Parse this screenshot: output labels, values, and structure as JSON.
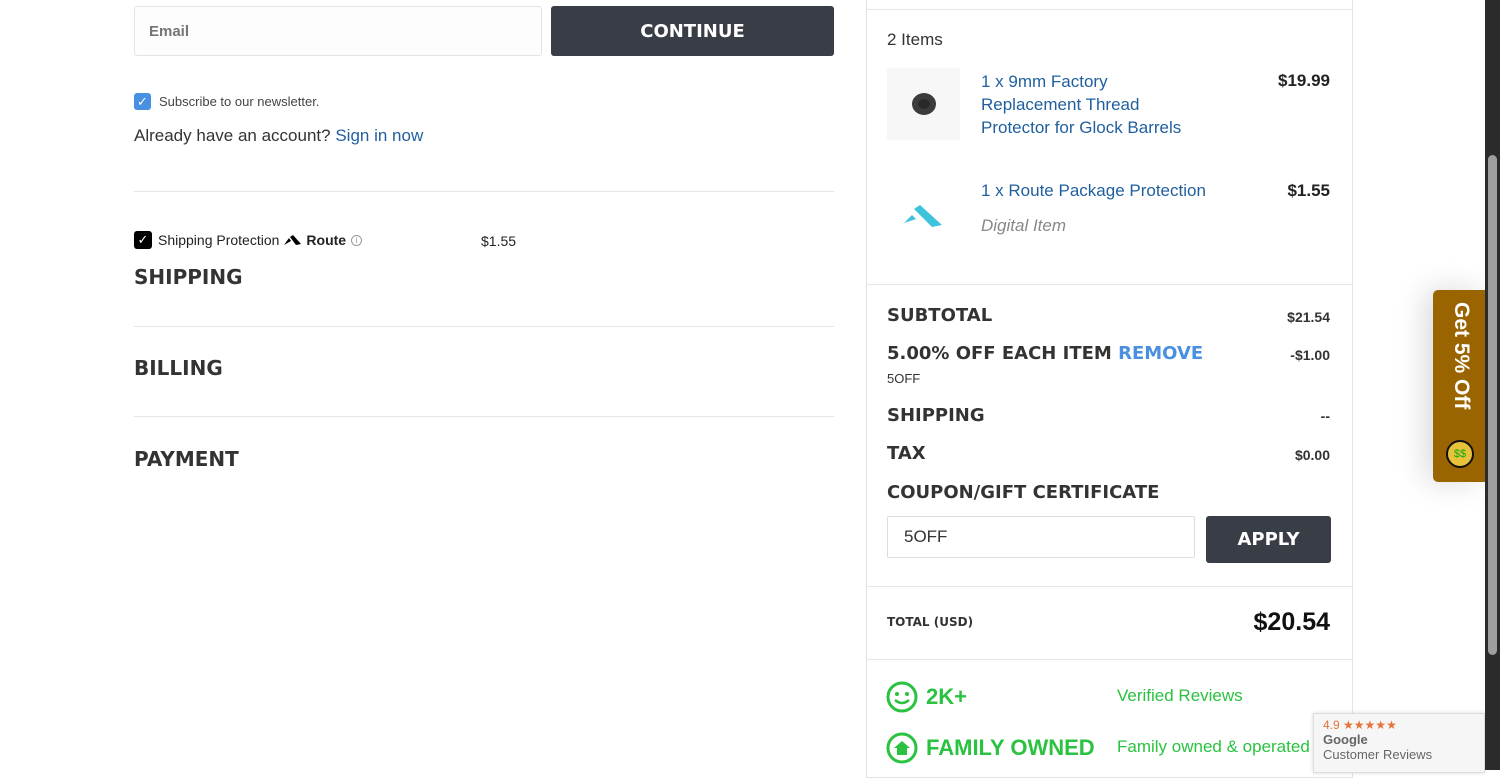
{
  "checkout": {
    "email_placeholder": "Email",
    "continue_label": "CONTINUE",
    "newsletter_label": "Subscribe to our newsletter.",
    "newsletter_checked": true,
    "account_prompt": "Already have an account?",
    "sign_in_label": "Sign in now",
    "shipping_protection": {
      "label": "Shipping Protection",
      "brand": "Route",
      "price": "$1.55",
      "checked": true
    },
    "sections": [
      "SHIPPING",
      "BILLING",
      "PAYMENT"
    ]
  },
  "cart": {
    "count_label": "2 Items",
    "items": [
      {
        "name": "1 x 9mm Factory Replacement Thread Protector for Glock Barrels",
        "price": "$19.99",
        "image": "thread-protector"
      },
      {
        "name": "1 x Route Package Protection",
        "price": "$1.55",
        "note": "Digital Item",
        "image": "route-logo"
      }
    ],
    "subtotal_label": "SUBTOTAL",
    "subtotal": "$21.54",
    "discount_label": "5.00% OFF EACH ITEM",
    "remove_label": "REMOVE",
    "discount": "-$1.00",
    "discount_code": "5OFF",
    "shipping_label": "SHIPPING",
    "shipping": "--",
    "tax_label": "TAX",
    "tax": "$0.00",
    "coupon_label": "COUPON/GIFT CERTIFICATE",
    "coupon_value": "5OFF",
    "apply_label": "APPLY",
    "total_label": "TOTAL (USD)",
    "total": "$20.54"
  },
  "trust": [
    {
      "icon": "smiley-icon",
      "title": "2K+",
      "text": "Verified Reviews"
    },
    {
      "icon": "home-icon",
      "title": "FAMILY OWNED",
      "text": "Family owned & operated"
    }
  ],
  "promo_tab": {
    "label": "Get 5% Off",
    "color": "#9a6400"
  },
  "google_badge": {
    "rating": "4.9",
    "stars": "★★★★★",
    "line1": "Google",
    "line2": "Customer Reviews"
  },
  "colors": {
    "button": "#393d46",
    "link": "#1f5f9e",
    "accent_blue": "#4a90e2",
    "green": "#2ac240"
  }
}
